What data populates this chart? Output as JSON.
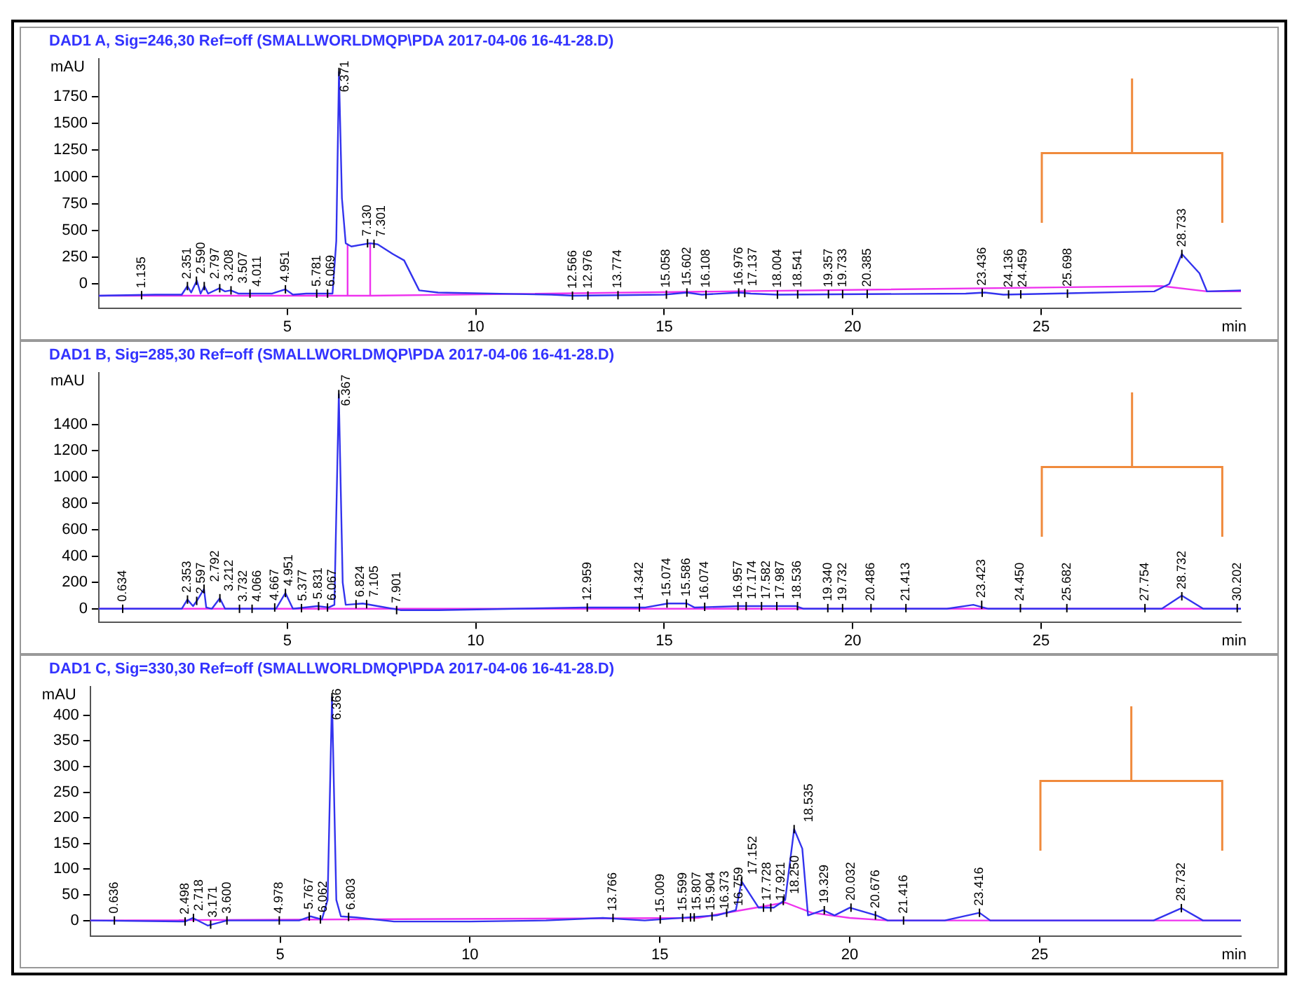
{
  "chart_data": [
    {
      "type": "line",
      "title": "DAD1 A, Sig=246,30 Ref=off (SMALLWORLDMQP\\PDA 2017-04-06 16-41-28.D)",
      "ylabel": "mAU",
      "xlabel": "min",
      "xlim": [
        0,
        30.3
      ],
      "xticks": [
        5,
        10,
        15,
        20,
        25
      ],
      "ylim": [
        -225,
        2100
      ],
      "yticks": [
        0,
        250,
        500,
        750,
        1000,
        1250,
        1500,
        1750
      ],
      "grid": false,
      "legend": false,
      "marker": "none",
      "line_style": "solid",
      "series": [
        {
          "color": "#3333ee",
          "x": [
            0,
            1.5,
            2.2,
            2.35,
            2.45,
            2.6,
            2.7,
            2.8,
            2.9,
            3.2,
            3.35,
            3.5,
            3.7,
            4.6,
            4.95,
            5.15,
            5.5,
            6.2,
            6.3,
            6.371,
            6.45,
            6.55,
            6.7,
            7.2,
            7.4,
            7.8,
            8.1,
            8.5,
            9,
            12,
            12.6,
            15,
            15.6,
            16,
            17,
            17.3,
            18,
            23,
            23.5,
            24,
            28,
            28.4,
            28.733,
            29.2,
            29.4,
            30.3
          ],
          "values": [
            -110,
            -100,
            -100,
            -20,
            -80,
            30,
            -90,
            -20,
            -90,
            -40,
            -70,
            -60,
            -90,
            -90,
            -50,
            -100,
            -90,
            -90,
            400,
            1980,
            800,
            380,
            350,
            380,
            370,
            280,
            220,
            -60,
            -80,
            -100,
            -110,
            -100,
            -80,
            -100,
            -80,
            -90,
            -100,
            -90,
            -80,
            -100,
            -70,
            0,
            280,
            100,
            -70,
            -60
          ]
        },
        {
          "color": "#ee33ee",
          "x": [
            0,
            6.6,
            6.6,
            6.6,
            7.2,
            7.2,
            7.2,
            28.2,
            29.4,
            30.3
          ],
          "values": [
            -110,
            -110,
            370,
            -110,
            -110,
            380,
            -110,
            -20,
            -70,
            -70
          ]
        }
      ],
      "annotations": [
        {
          "text": "1.135",
          "x": 1.135,
          "y": -105
        },
        {
          "text": "2.351",
          "x": 2.351,
          "y": -20
        },
        {
          "text": "2.590",
          "x": 2.59,
          "y": 30
        },
        {
          "text": "2.797",
          "x": 2.797,
          "y": -20
        },
        {
          "text": "3.208",
          "x": 3.208,
          "y": -40
        },
        {
          "text": "3.507",
          "x": 3.507,
          "y": -60
        },
        {
          "text": "4.011",
          "x": 4.011,
          "y": -90
        },
        {
          "text": "4.951",
          "x": 4.951,
          "y": -50
        },
        {
          "text": "5.781",
          "x": 5.781,
          "y": -90
        },
        {
          "text": "6.069",
          "x": 6.069,
          "y": -90
        },
        {
          "text": "6.371",
          "x": 6.371,
          "y": 1980
        },
        {
          "text": "7.130",
          "x": 7.13,
          "y": 380
        },
        {
          "text": "7.301",
          "x": 7.301,
          "y": 375
        },
        {
          "text": "12.566",
          "x": 12.566,
          "y": -110
        },
        {
          "text": "12.976",
          "x": 12.976,
          "y": -108
        },
        {
          "text": "13.774",
          "x": 13.774,
          "y": -105
        },
        {
          "text": "15.058",
          "x": 15.058,
          "y": -100
        },
        {
          "text": "15.602",
          "x": 15.602,
          "y": -80
        },
        {
          "text": "16.108",
          "x": 16.108,
          "y": -100
        },
        {
          "text": "16.976",
          "x": 16.976,
          "y": -80
        },
        {
          "text": "17.137",
          "x": 17.137,
          "y": -85
        },
        {
          "text": "18.004",
          "x": 18.004,
          "y": -100
        },
        {
          "text": "18.541",
          "x": 18.541,
          "y": -98
        },
        {
          "text": "19.357",
          "x": 19.357,
          "y": -96
        },
        {
          "text": "19.733",
          "x": 19.733,
          "y": -95
        },
        {
          "text": "20.385",
          "x": 20.385,
          "y": -94
        },
        {
          "text": "23.436",
          "x": 23.436,
          "y": -82
        },
        {
          "text": "24.136",
          "x": 24.136,
          "y": -98
        },
        {
          "text": "24.459",
          "x": 24.459,
          "y": -97
        },
        {
          "text": "25.698",
          "x": 25.698,
          "y": -90
        },
        {
          "text": "28.733",
          "x": 28.733,
          "y": 280
        }
      ]
    },
    {
      "type": "line",
      "title": "DAD1 B, Sig=285,30 Ref=off (SMALLWORLDMQP\\PDA 2017-04-06 16-41-28.D)",
      "ylabel": "mAU",
      "xlabel": "min",
      "xlim": [
        0,
        30.3
      ],
      "xticks": [
        5,
        10,
        15,
        20,
        25
      ],
      "ylim": [
        -100,
        1790
      ],
      "yticks": [
        0,
        200,
        400,
        600,
        800,
        1000,
        1200,
        1400
      ],
      "grid": false,
      "legend": false,
      "marker": "none",
      "line_style": "solid",
      "series": [
        {
          "color": "#3333ee",
          "x": [
            0,
            2.2,
            2.35,
            2.5,
            2.6,
            2.79,
            2.85,
            3.0,
            3.21,
            3.35,
            4.7,
            4.95,
            5.15,
            5.8,
            6.1,
            6.25,
            6.367,
            6.47,
            6.55,
            7.0,
            7.4,
            8,
            9,
            12.9,
            14.5,
            15.1,
            15.6,
            15.8,
            17,
            18.5,
            18.7,
            22.5,
            23.2,
            23.6,
            28.2,
            28.732,
            29.3,
            30.3
          ],
          "values": [
            0,
            0,
            70,
            20,
            60,
            150,
            10,
            0,
            80,
            0,
            0,
            120,
            0,
            20,
            10,
            30,
            1630,
            200,
            30,
            40,
            20,
            -10,
            -10,
            10,
            10,
            40,
            40,
            10,
            20,
            20,
            0,
            0,
            30,
            0,
            0,
            100,
            0,
            0
          ]
        },
        {
          "color": "#ee33ee",
          "x": [
            0,
            30.3
          ],
          "values": [
            0,
            0
          ]
        }
      ],
      "annotations": [
        {
          "text": "0.634",
          "x": 0.634,
          "y": 0
        },
        {
          "text": "2.353",
          "x": 2.353,
          "y": 70
        },
        {
          "text": "2.597",
          "x": 2.597,
          "y": 60
        },
        {
          "text": "2.792",
          "x": 2.792,
          "y": 150
        },
        {
          "text": "3.212",
          "x": 3.212,
          "y": 80
        },
        {
          "text": "3.732",
          "x": 3.732,
          "y": 0
        },
        {
          "text": "4.066",
          "x": 4.066,
          "y": 0
        },
        {
          "text": "4.667",
          "x": 4.667,
          "y": 10
        },
        {
          "text": "4.951",
          "x": 4.951,
          "y": 120
        },
        {
          "text": "5.377",
          "x": 5.377,
          "y": 5
        },
        {
          "text": "5.831",
          "x": 5.831,
          "y": 20
        },
        {
          "text": "6.067",
          "x": 6.067,
          "y": 10
        },
        {
          "text": "6.367",
          "x": 6.367,
          "y": 1630
        },
        {
          "text": "6.824",
          "x": 6.824,
          "y": 35
        },
        {
          "text": "7.105",
          "x": 7.105,
          "y": 35
        },
        {
          "text": "7.901",
          "x": 7.901,
          "y": -10
        },
        {
          "text": "12.959",
          "x": 12.959,
          "y": 10
        },
        {
          "text": "14.342",
          "x": 14.342,
          "y": 10
        },
        {
          "text": "15.074",
          "x": 15.074,
          "y": 40
        },
        {
          "text": "15.586",
          "x": 15.586,
          "y": 40
        },
        {
          "text": "16.074",
          "x": 16.074,
          "y": 15
        },
        {
          "text": "16.957",
          "x": 16.957,
          "y": 20
        },
        {
          "text": "17.174",
          "x": 17.174,
          "y": 20
        },
        {
          "text": "17.582",
          "x": 17.582,
          "y": 20
        },
        {
          "text": "17.987",
          "x": 17.987,
          "y": 20
        },
        {
          "text": "18.536",
          "x": 18.536,
          "y": 20
        },
        {
          "text": "19.340",
          "x": 19.34,
          "y": 5
        },
        {
          "text": "19.732",
          "x": 19.732,
          "y": 5
        },
        {
          "text": "20.486",
          "x": 20.486,
          "y": 5
        },
        {
          "text": "21.413",
          "x": 21.413,
          "y": 5
        },
        {
          "text": "23.423",
          "x": 23.423,
          "y": 30
        },
        {
          "text": "24.450",
          "x": 24.45,
          "y": 5
        },
        {
          "text": "25.682",
          "x": 25.682,
          "y": 5
        },
        {
          "text": "27.754",
          "x": 27.754,
          "y": 5
        },
        {
          "text": "28.732",
          "x": 28.732,
          "y": 95
        },
        {
          "text": "30.202",
          "x": 30.202,
          "y": 5
        }
      ]
    },
    {
      "type": "line",
      "title": "DAD1 C, Sig=330,30 Ref=off (SMALLWORLDMQP\\PDA 2017-04-06 16-41-28.D)",
      "ylabel": "mAU",
      "xlabel": "min",
      "xlim": [
        0,
        30.3
      ],
      "xticks": [
        5,
        10,
        15,
        20,
        25
      ],
      "ylim": [
        -30,
        455
      ],
      "yticks": [
        0,
        50,
        100,
        150,
        200,
        250,
        300,
        350,
        400
      ],
      "grid": false,
      "legend": false,
      "marker": "none",
      "line_style": "solid",
      "series": [
        {
          "color": "#3333ee",
          "x": [
            0,
            2.5,
            2.7,
            3.1,
            3.6,
            5.5,
            5.8,
            6.1,
            6.25,
            6.366,
            6.48,
            6.6,
            7,
            8,
            10,
            12,
            13.5,
            14.6,
            16.5,
            17,
            17.152,
            17.6,
            18,
            18.3,
            18.535,
            18.75,
            18.9,
            19.3,
            19.6,
            20,
            20.7,
            21,
            22.5,
            23.416,
            23.7,
            28,
            28.732,
            29.3,
            30.3
          ],
          "values": [
            0,
            -2,
            5,
            -10,
            0,
            0,
            8,
            2,
            40,
            435,
            40,
            8,
            6,
            -2,
            -2,
            0,
            5,
            0,
            10,
            20,
            76,
            25,
            25,
            40,
            178,
            140,
            10,
            20,
            10,
            25,
            10,
            0,
            0,
            15,
            0,
            0,
            24,
            0,
            0
          ]
        },
        {
          "color": "#ee33ee",
          "x": [
            0,
            16,
            18.3,
            19,
            20,
            21,
            30.3
          ],
          "values": [
            0,
            5,
            35,
            15,
            5,
            0,
            0
          ]
        }
      ],
      "annotations": [
        {
          "text": "0.636",
          "x": 0.636,
          "y": 0
        },
        {
          "text": "2.498",
          "x": 2.498,
          "y": -2
        },
        {
          "text": "2.718",
          "x": 2.718,
          "y": 5
        },
        {
          "text": "3.171",
          "x": 3.171,
          "y": -8
        },
        {
          "text": "3.600",
          "x": 3.6,
          "y": 0
        },
        {
          "text": "4.978",
          "x": 4.978,
          "y": 0
        },
        {
          "text": "5.767",
          "x": 5.767,
          "y": 8
        },
        {
          "text": "6.062",
          "x": 6.062,
          "y": 2
        },
        {
          "text": "6.366",
          "x": 6.366,
          "y": 435
        },
        {
          "text": "6.803",
          "x": 6.803,
          "y": 7
        },
        {
          "text": "13.766",
          "x": 13.766,
          "y": 5
        },
        {
          "text": "15.009",
          "x": 15.009,
          "y": 2
        },
        {
          "text": "15.599",
          "x": 15.599,
          "y": 5
        },
        {
          "text": "15.807",
          "x": 15.807,
          "y": 6
        },
        {
          "text": "15.904",
          "x": 15.904,
          "y": 6
        },
        {
          "text": "16.373",
          "x": 16.373,
          "y": 8
        },
        {
          "text": "16.759",
          "x": 16.759,
          "y": 15
        },
        {
          "text": "17.152",
          "x": 17.152,
          "y": 76
        },
        {
          "text": "17.728",
          "x": 17.728,
          "y": 25
        },
        {
          "text": "17.921",
          "x": 17.921,
          "y": 25
        },
        {
          "text": "18.250",
          "x": 18.25,
          "y": 38
        },
        {
          "text": "18.535",
          "x": 18.535,
          "y": 178
        },
        {
          "text": "19.329",
          "x": 19.329,
          "y": 20
        },
        {
          "text": "20.032",
          "x": 20.032,
          "y": 25
        },
        {
          "text": "20.676",
          "x": 20.676,
          "y": 10
        },
        {
          "text": "21.416",
          "x": 21.416,
          "y": 0
        },
        {
          "text": "23.416",
          "x": 23.416,
          "y": 15
        },
        {
          "text": "28.732",
          "x": 28.732,
          "y": 24
        }
      ]
    }
  ]
}
